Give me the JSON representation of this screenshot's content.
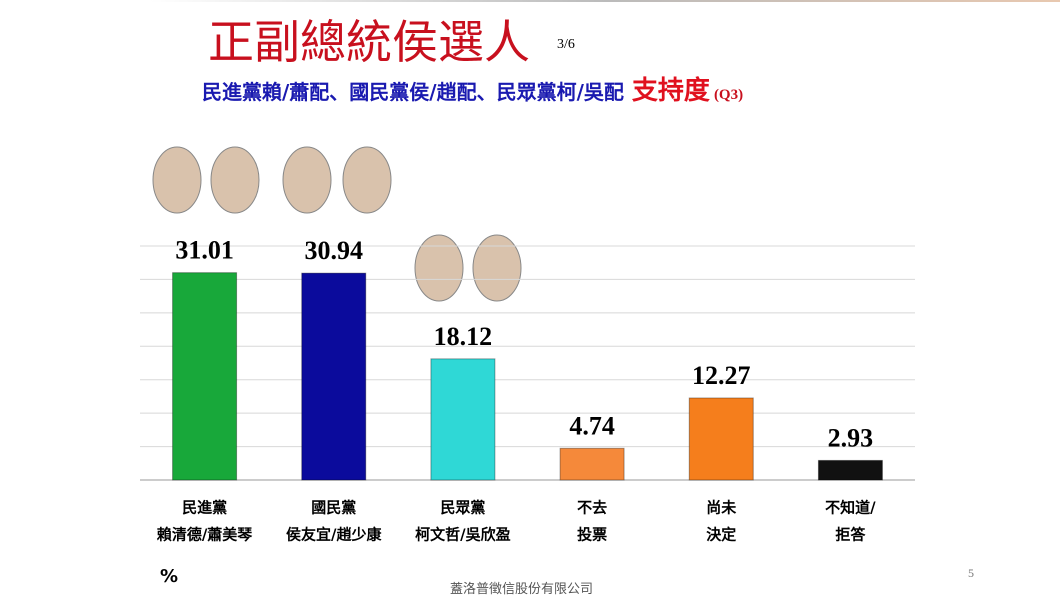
{
  "chart_data": {
    "type": "bar",
    "title": "正副總統侯選人",
    "page_indicator": "3/6",
    "subtitle": "民進黨賴/蕭配、國民黨侯/趙配、民眾黨柯/吳配",
    "subtitle_emphasis": "支持度",
    "question": "(Q3)",
    "unit_label": "%",
    "categories": [
      [
        "民進黨",
        "賴清德/蕭美琴"
      ],
      [
        "國民黨",
        "侯友宜/趙少康"
      ],
      [
        "民眾黨",
        "柯文哲/吳欣盈"
      ],
      [
        "不去",
        "投票"
      ],
      [
        "尚未",
        "決定"
      ],
      [
        "不知道/",
        "拒答"
      ]
    ],
    "values": [
      31.01,
      30.94,
      18.12,
      4.74,
      12.27,
      2.93
    ],
    "colors": [
      "#18a83a",
      "#0b0b9c",
      "#2fd8d6",
      "#f5893a",
      "#f57e1c",
      "#111111"
    ],
    "ylim": [
      0,
      35
    ],
    "yticks": [
      0,
      5,
      10,
      15,
      20,
      25,
      30,
      35
    ],
    "grid": true
  },
  "footer": {
    "company": "蓋洛普徵信股份有限公司",
    "page_number": "5"
  }
}
